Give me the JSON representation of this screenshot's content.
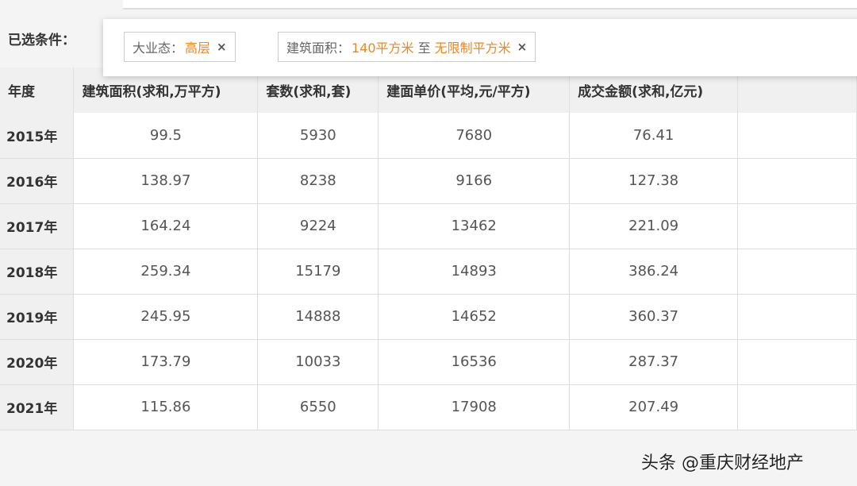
{
  "filters": {
    "label": "已选条件：",
    "tags": [
      {
        "key": "大业态：",
        "value": "高层"
      },
      {
        "key": "建筑面积：",
        "from": "140平方米",
        "sep": "至",
        "to": "无限制平方米"
      }
    ],
    "remove_icon": "×"
  },
  "table": {
    "headers": [
      "年度",
      "建筑面积(求和,万平方)",
      "套数(求和,套)",
      "建面单价(平均,元/平方)",
      "成交金额(求和,亿元)",
      ""
    ],
    "rows": [
      [
        "2015年",
        "99.5",
        "5930",
        "7680",
        "76.41"
      ],
      [
        "2016年",
        "138.97",
        "8238",
        "9166",
        "127.38"
      ],
      [
        "2017年",
        "164.24",
        "9224",
        "13462",
        "221.09"
      ],
      [
        "2018年",
        "259.34",
        "15179",
        "14893",
        "386.24"
      ],
      [
        "2019年",
        "245.95",
        "14888",
        "14652",
        "360.37"
      ],
      [
        "2020年",
        "173.79",
        "10033",
        "16536",
        "287.37"
      ],
      [
        "2021年",
        "115.86",
        "6550",
        "17908",
        "207.49"
      ]
    ]
  },
  "watermark": "头条 @重庆财经地产",
  "colors": {
    "accent": "#f0861a"
  }
}
